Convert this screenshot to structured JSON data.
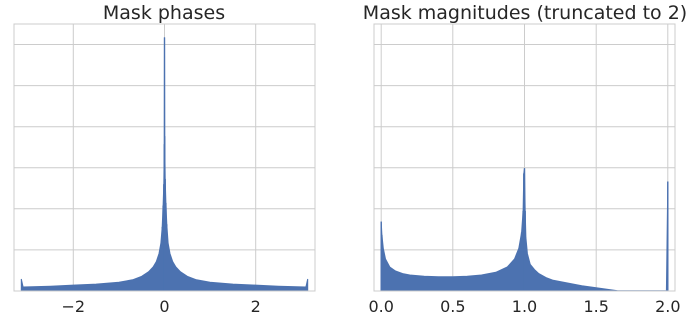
{
  "chart_data": [
    {
      "type": "histogram",
      "title": "Mask phases",
      "xlabel": "",
      "ylabel": "",
      "xlim": [
        -3.3,
        3.3
      ],
      "ylim": [
        0,
        1.0
      ],
      "xticks": [
        -2,
        0,
        2
      ],
      "xtick_labels": [
        "−2",
        "0",
        "2"
      ],
      "ygrid_count": 6,
      "grid": true,
      "color": "#4c72b0",
      "x": [
        -3.14,
        -3.1,
        -2.9,
        -2.5,
        -2.0,
        -1.5,
        -1.0,
        -0.7,
        -0.5,
        -0.35,
        -0.25,
        -0.18,
        -0.12,
        -0.08,
        -0.05,
        -0.03,
        -0.015,
        -0.005,
        0.0,
        0.005,
        0.015,
        0.03,
        0.05,
        0.08,
        0.12,
        0.18,
        0.25,
        0.35,
        0.5,
        0.7,
        1.0,
        1.5,
        2.0,
        2.5,
        2.9,
        3.1,
        3.14
      ],
      "values": [
        0.045,
        0.015,
        0.016,
        0.018,
        0.022,
        0.026,
        0.033,
        0.042,
        0.055,
        0.072,
        0.09,
        0.11,
        0.14,
        0.18,
        0.24,
        0.32,
        0.4,
        0.55,
        0.95,
        0.58,
        0.42,
        0.33,
        0.25,
        0.18,
        0.14,
        0.11,
        0.09,
        0.072,
        0.055,
        0.042,
        0.033,
        0.026,
        0.022,
        0.018,
        0.016,
        0.015,
        0.045
      ]
    },
    {
      "type": "histogram",
      "title": "Mask magnitudes (truncated to 2)",
      "xlabel": "",
      "ylabel": "",
      "xlim": [
        -0.05,
        2.05
      ],
      "ylim": [
        0,
        1.0
      ],
      "xticks": [
        0.0,
        0.5,
        1.0,
        1.5,
        2.0
      ],
      "xtick_labels": [
        "0.0",
        "0.5",
        "1.0",
        "1.5",
        "2.0"
      ],
      "ygrid_count": 6,
      "grid": true,
      "color": "#4c72b0",
      "x": [
        0.0,
        0.005,
        0.015,
        0.03,
        0.06,
        0.1,
        0.15,
        0.2,
        0.3,
        0.4,
        0.5,
        0.6,
        0.7,
        0.8,
        0.88,
        0.93,
        0.96,
        0.98,
        0.99,
        0.995,
        1.0,
        1.005,
        1.01,
        1.02,
        1.04,
        1.07,
        1.1,
        1.15,
        1.2,
        1.3,
        1.4,
        1.5,
        1.6,
        1.65,
        1.7,
        1.8,
        1.9,
        1.99,
        2.0
      ],
      "values": [
        0.26,
        0.21,
        0.16,
        0.12,
        0.09,
        0.075,
        0.065,
        0.06,
        0.055,
        0.053,
        0.053,
        0.055,
        0.06,
        0.07,
        0.09,
        0.12,
        0.16,
        0.22,
        0.3,
        0.44,
        0.46,
        0.3,
        0.2,
        0.14,
        0.1,
        0.08,
        0.065,
        0.05,
        0.04,
        0.03,
        0.02,
        0.012,
        0.005,
        0.001,
        0.001,
        0.001,
        0.001,
        0.001,
        0.41
      ]
    }
  ]
}
